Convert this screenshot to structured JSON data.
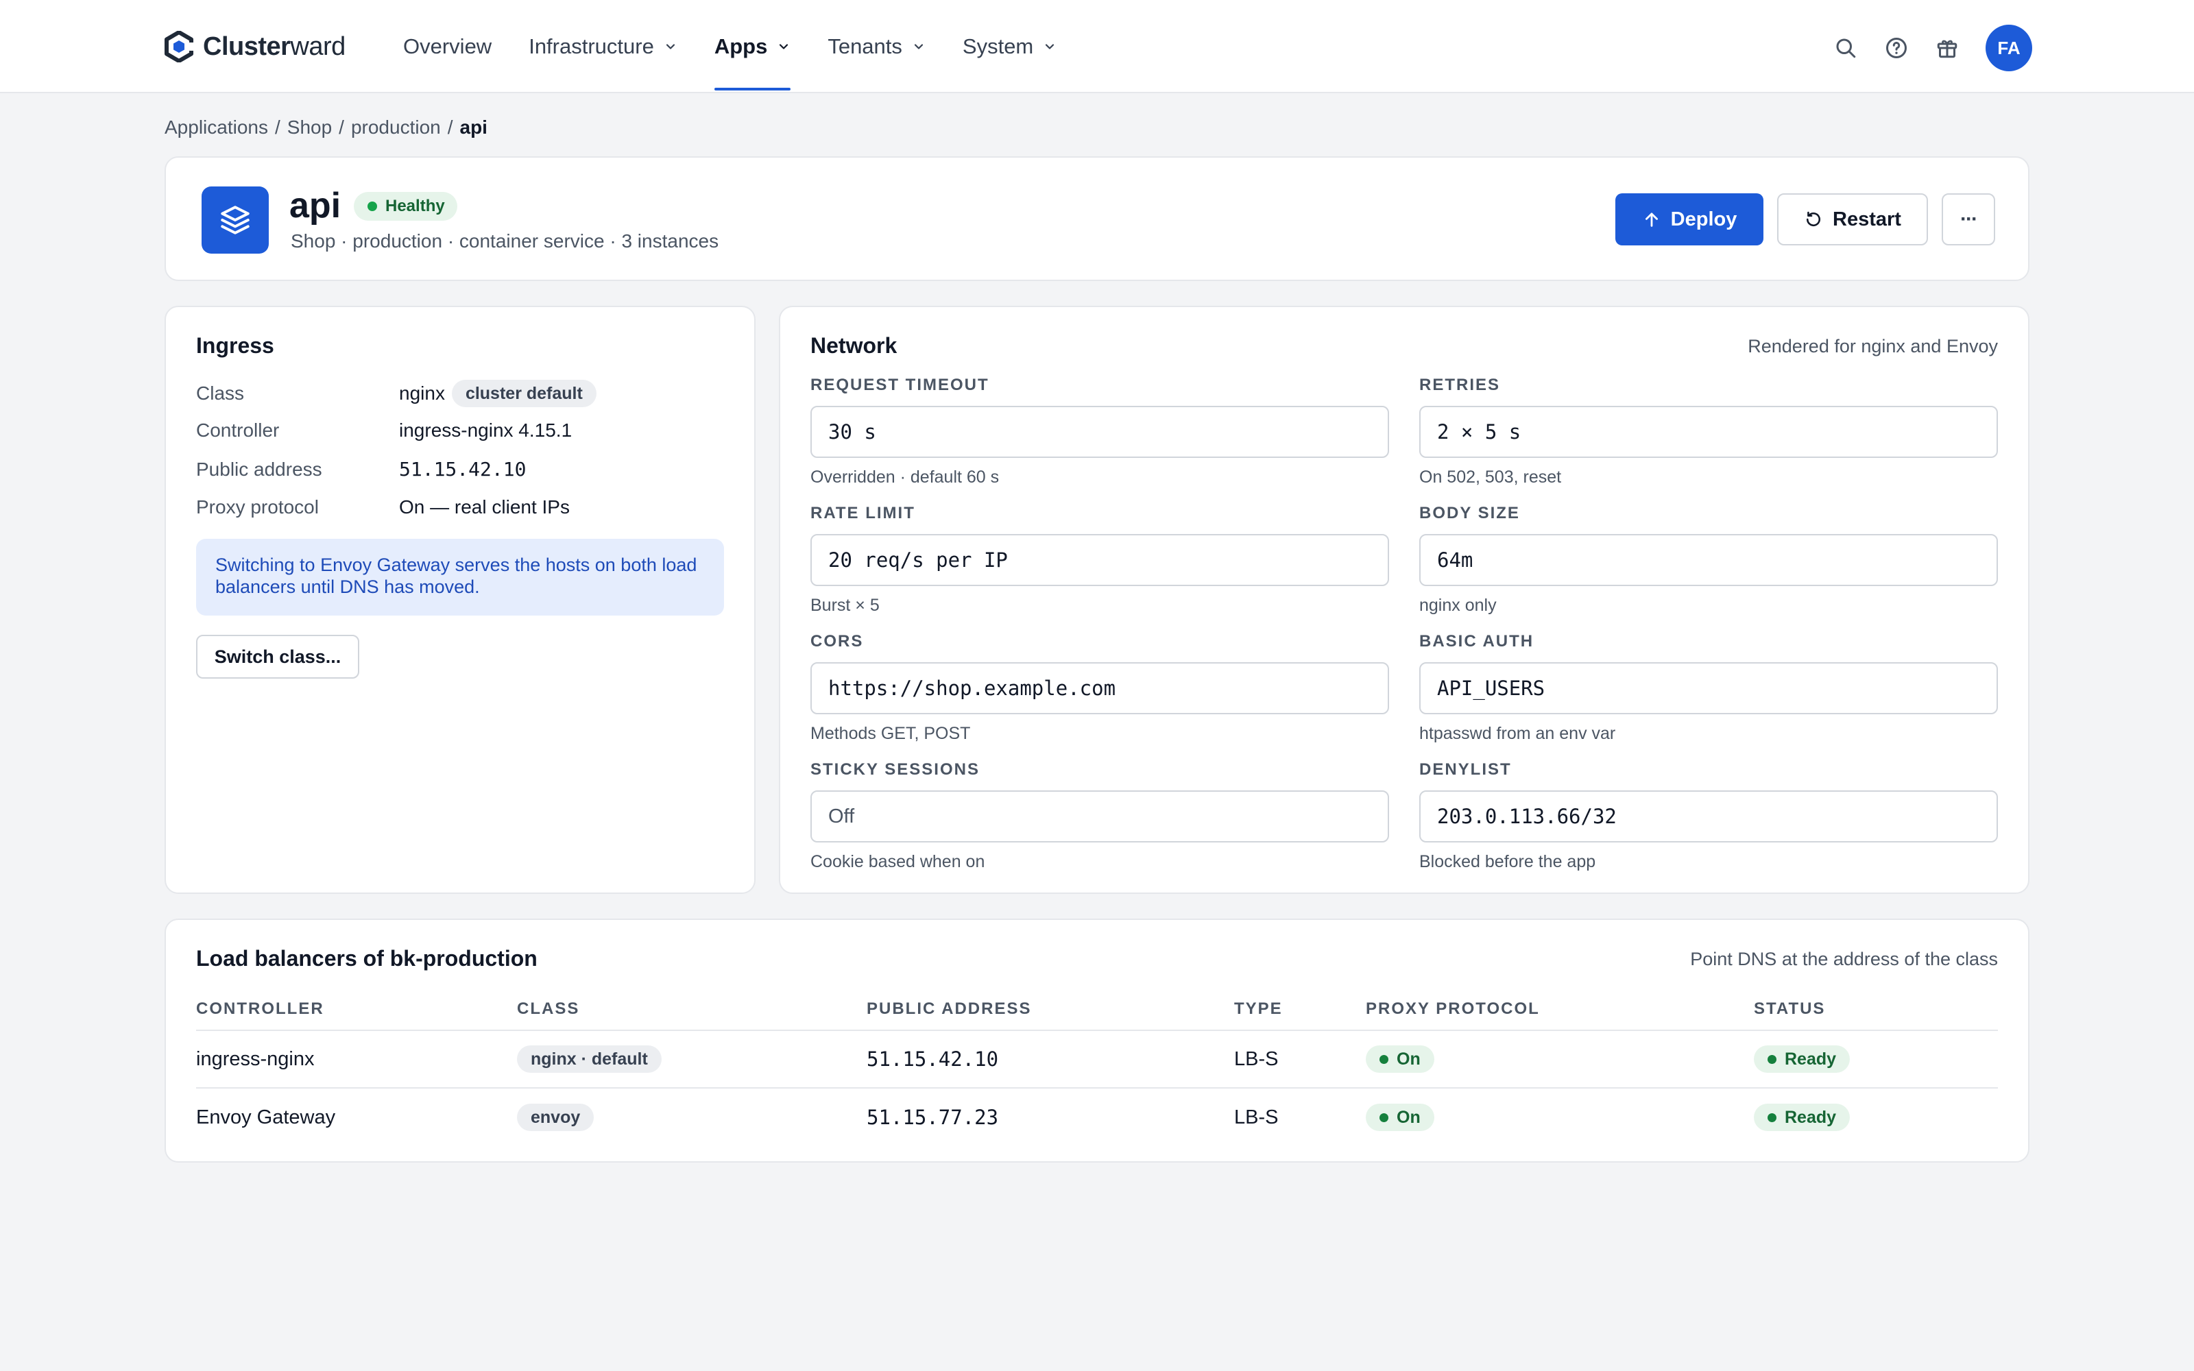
{
  "brand": {
    "name_bold": "Cluster",
    "name_light": "ward"
  },
  "nav": {
    "items": [
      {
        "label": "Overview",
        "has_menu": false,
        "active": false
      },
      {
        "label": "Infrastructure",
        "has_menu": true,
        "active": false
      },
      {
        "label": "Apps",
        "has_menu": true,
        "active": true
      },
      {
        "label": "Tenants",
        "has_menu": true,
        "active": false
      },
      {
        "label": "System",
        "has_menu": true,
        "active": false
      }
    ],
    "avatar_initials": "FA",
    "icons": [
      "search-icon",
      "help-icon",
      "gift-icon"
    ]
  },
  "breadcrumb": {
    "items": [
      "Applications",
      "Shop",
      "production"
    ],
    "separator": "/",
    "current": "api"
  },
  "app": {
    "name": "api",
    "status": "Healthy",
    "subtitle": "Shop · production · container service · 3 instances",
    "deploy_label": "Deploy",
    "restart_label": "Restart",
    "more_label": "···"
  },
  "ingress": {
    "title": "Ingress",
    "rows": [
      {
        "key": "Class",
        "value": "nginx",
        "chip": "cluster default"
      },
      {
        "key": "Controller",
        "value": "ingress-nginx 4.15.1"
      },
      {
        "key": "Public address",
        "value": "51.15.42.10"
      },
      {
        "key": "Proxy protocol",
        "value": "On — real client IPs"
      }
    ],
    "info": "Switching to Envoy Gateway serves the hosts on both load balancers until DNS has moved.",
    "switch_label": "Switch class..."
  },
  "network": {
    "title": "Network",
    "note": "Rendered for nginx and Envoy",
    "fields": [
      {
        "label": "REQUEST TIMEOUT",
        "value": "30 s",
        "hint": "Overridden · default 60 s"
      },
      {
        "label": "RETRIES",
        "value": "2 × 5 s",
        "hint": "On 502, 503, reset"
      },
      {
        "label": "RATE LIMIT",
        "value": "20 req/s per IP",
        "hint": "Burst × 5"
      },
      {
        "label": "BODY SIZE",
        "value": "64m",
        "hint": "nginx only"
      },
      {
        "label": "CORS",
        "value": "https://shop.example.com",
        "hint": "Methods GET, POST"
      },
      {
        "label": "BASIC AUTH",
        "value": "API_USERS",
        "hint": "htpasswd from an env var"
      },
      {
        "label": "STICKY SESSIONS",
        "value": "Off",
        "hint": "Cookie based when on"
      },
      {
        "label": "DENYLIST",
        "value": "203.0.113.66/32",
        "hint": "Blocked before the app"
      }
    ]
  },
  "load_balancers": {
    "title": "Load balancers of bk-production",
    "note": "Point DNS at the address of the class",
    "columns": [
      "CONTROLLER",
      "CLASS",
      "PUBLIC ADDRESS",
      "TYPE",
      "PROXY PROTOCOL",
      "STATUS"
    ],
    "rows": [
      {
        "controller": "ingress-nginx",
        "class": "nginx · default",
        "address": "51.15.42.10",
        "type": "LB-S",
        "proxy": "On",
        "status": "Ready"
      },
      {
        "controller": "Envoy Gateway",
        "class": "envoy",
        "address": "51.15.77.23",
        "type": "LB-S",
        "proxy": "On",
        "status": "Ready"
      }
    ]
  },
  "colors": {
    "accent": "#1d5bd8",
    "healthy_bg": "#e6f4ea",
    "healthy_text": "#166534",
    "info_bg": "#e5edfd"
  }
}
